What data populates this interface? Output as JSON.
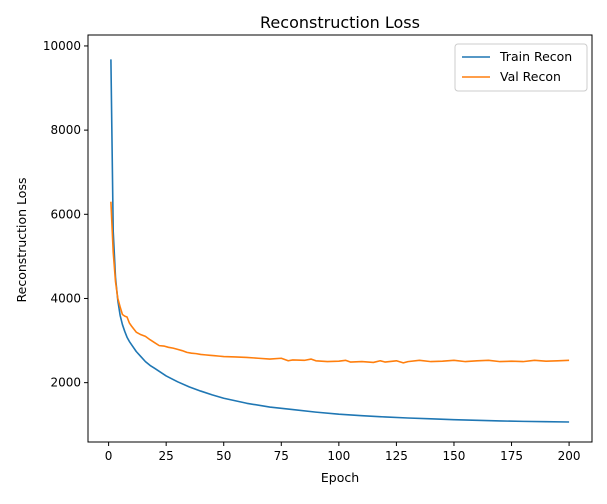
{
  "chart_data": {
    "type": "line",
    "title": "Reconstruction Loss",
    "xlabel": "Epoch",
    "ylabel": "Reconstruction Loss",
    "xlim": [
      -8.95,
      209.95
    ],
    "ylim": [
      590,
      10260
    ],
    "xticks": [
      0,
      25,
      50,
      75,
      100,
      125,
      150,
      175,
      200
    ],
    "yticks": [
      2000,
      4000,
      6000,
      8000,
      10000
    ],
    "grid": false,
    "legend_position": "top-right",
    "series": [
      {
        "name": "Train Recon",
        "color": "#1f77b4",
        "points": [
          [
            1,
            9680
          ],
          [
            2,
            5600
          ],
          [
            3,
            4500
          ],
          [
            4,
            3950
          ],
          [
            5,
            3600
          ],
          [
            6,
            3380
          ],
          [
            7,
            3220
          ],
          [
            8,
            3080
          ],
          [
            9,
            2980
          ],
          [
            10,
            2900
          ],
          [
            12,
            2740
          ],
          [
            14,
            2620
          ],
          [
            16,
            2500
          ],
          [
            18,
            2410
          ],
          [
            20,
            2340
          ],
          [
            25,
            2160
          ],
          [
            30,
            2020
          ],
          [
            35,
            1900
          ],
          [
            40,
            1800
          ],
          [
            45,
            1710
          ],
          [
            50,
            1630
          ],
          [
            60,
            1510
          ],
          [
            70,
            1420
          ],
          [
            80,
            1360
          ],
          [
            90,
            1300
          ],
          [
            100,
            1250
          ],
          [
            110,
            1215
          ],
          [
            120,
            1185
          ],
          [
            130,
            1160
          ],
          [
            140,
            1140
          ],
          [
            150,
            1120
          ],
          [
            160,
            1105
          ],
          [
            170,
            1090
          ],
          [
            180,
            1080
          ],
          [
            190,
            1072
          ],
          [
            200,
            1065
          ]
        ]
      },
      {
        "name": "Val Recon",
        "color": "#ff7f0e",
        "points": [
          [
            1,
            6300
          ],
          [
            2,
            5100
          ],
          [
            3,
            4400
          ],
          [
            4,
            4000
          ],
          [
            5,
            3800
          ],
          [
            6,
            3620
          ],
          [
            7,
            3580
          ],
          [
            8,
            3560
          ],
          [
            9,
            3420
          ],
          [
            10,
            3340
          ],
          [
            12,
            3200
          ],
          [
            14,
            3140
          ],
          [
            16,
            3100
          ],
          [
            18,
            3020
          ],
          [
            20,
            2950
          ],
          [
            22,
            2880
          ],
          [
            24,
            2870
          ],
          [
            26,
            2840
          ],
          [
            28,
            2820
          ],
          [
            30,
            2790
          ],
          [
            32,
            2760
          ],
          [
            34,
            2720
          ],
          [
            36,
            2700
          ],
          [
            38,
            2690
          ],
          [
            40,
            2670
          ],
          [
            42,
            2660
          ],
          [
            44,
            2650
          ],
          [
            46,
            2640
          ],
          [
            48,
            2630
          ],
          [
            50,
            2620
          ],
          [
            55,
            2610
          ],
          [
            60,
            2600
          ],
          [
            65,
            2580
          ],
          [
            70,
            2560
          ],
          [
            75,
            2580
          ],
          [
            78,
            2520
          ],
          [
            80,
            2540
          ],
          [
            85,
            2530
          ],
          [
            88,
            2560
          ],
          [
            90,
            2520
          ],
          [
            95,
            2500
          ],
          [
            100,
            2510
          ],
          [
            103,
            2530
          ],
          [
            105,
            2490
          ],
          [
            110,
            2500
          ],
          [
            115,
            2480
          ],
          [
            118,
            2520
          ],
          [
            120,
            2490
          ],
          [
            125,
            2520
          ],
          [
            128,
            2470
          ],
          [
            130,
            2500
          ],
          [
            135,
            2530
          ],
          [
            140,
            2500
          ],
          [
            145,
            2510
          ],
          [
            150,
            2530
          ],
          [
            155,
            2500
          ],
          [
            160,
            2520
          ],
          [
            165,
            2530
          ],
          [
            170,
            2500
          ],
          [
            175,
            2510
          ],
          [
            180,
            2500
          ],
          [
            185,
            2530
          ],
          [
            190,
            2510
          ],
          [
            195,
            2520
          ],
          [
            200,
            2530
          ]
        ]
      }
    ]
  }
}
